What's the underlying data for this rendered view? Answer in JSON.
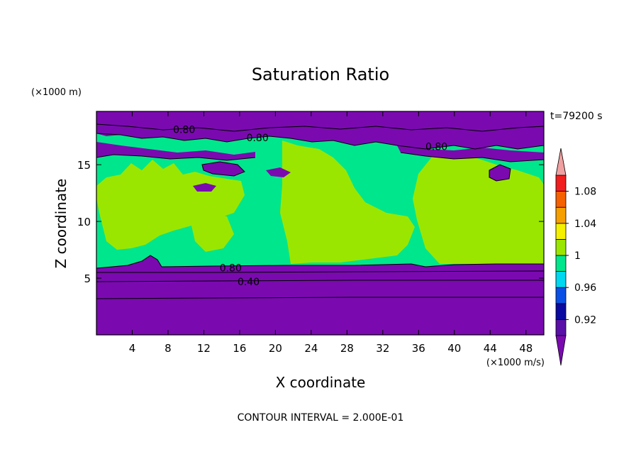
{
  "chart_data": {
    "type": "heatmap",
    "title": "Saturation Ratio",
    "xlabel": "X coordinate",
    "ylabel": "Z coordinate",
    "x_unit_label": "(×1000 m/s)",
    "y_unit_label": "(×1000 m)",
    "time_label": "t=79200 s",
    "footer": "CONTOUR INTERVAL = 2.000E-01",
    "xlim": [
      0,
      50
    ],
    "ylim": [
      0,
      19.7
    ],
    "x_ticks": [
      4,
      8,
      12,
      16,
      20,
      24,
      28,
      32,
      36,
      40,
      44,
      48
    ],
    "x_tick_labels": [
      "4",
      "8",
      "12",
      "16",
      "20",
      "24",
      "28",
      "32",
      "36",
      "40",
      "44",
      "48"
    ],
    "y_ticks": [
      5,
      10,
      15
    ],
    "y_tick_labels": [
      "5",
      "10",
      "15"
    ],
    "colorbar": {
      "levels": [
        0.9,
        0.92,
        0.94,
        0.96,
        0.98,
        1.0,
        1.02,
        1.04,
        1.06,
        1.08,
        1.1
      ],
      "labels": [
        {
          "value": 0.92,
          "text": "0.92"
        },
        {
          "value": 0.96,
          "text": "0.96"
        },
        {
          "value": 1.0,
          "text": "1"
        },
        {
          "value": 1.04,
          "text": "1.04"
        },
        {
          "value": 1.08,
          "text": "1.08"
        }
      ],
      "colors": [
        "#5a0fa8",
        "#0a0aa0",
        "#0a50e6",
        "#00d7f0",
        "#00e68c",
        "#9ae600",
        "#f5f000",
        "#f5a000",
        "#f56000",
        "#f01e1e"
      ],
      "under_color": "#7a0ab0",
      "over_color": "#f0a0a0"
    },
    "contour_labels": [
      {
        "text": "0.80",
        "x": 9.8,
        "z": 18.1
      },
      {
        "text": "0.80",
        "x": 18.0,
        "z": 17.4
      },
      {
        "text": "0.80",
        "x": 38.0,
        "z": 16.6
      },
      {
        "text": "0.80",
        "x": 15.0,
        "z": 5.9
      },
      {
        "text": "0.40",
        "x": 17.0,
        "z": 4.7
      }
    ],
    "regions_description": "purple below ~6.3 km (ratio < 0.9); mixed green (0.98–1.02) band 6.3–15 km; purple patches near 13–18 km"
  }
}
